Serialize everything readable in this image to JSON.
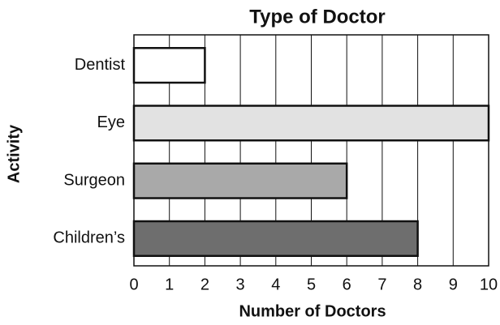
{
  "chart_data": {
    "type": "barh",
    "title": "Type of Doctor",
    "xlabel": "Number of Doctors",
    "ylabel": "Activity",
    "categories": [
      "Dentist",
      "Eye",
      "Surgeon",
      "Children’s"
    ],
    "values": [
      2,
      10,
      6,
      8
    ],
    "colors": [
      "#ffffff",
      "#e2e2e2",
      "#a9a9a9",
      "#6e6e6e"
    ],
    "xlim": [
      0,
      10
    ],
    "xticks": [
      0,
      1,
      2,
      3,
      4,
      5,
      6,
      7,
      8,
      9,
      10
    ],
    "grid": true
  }
}
